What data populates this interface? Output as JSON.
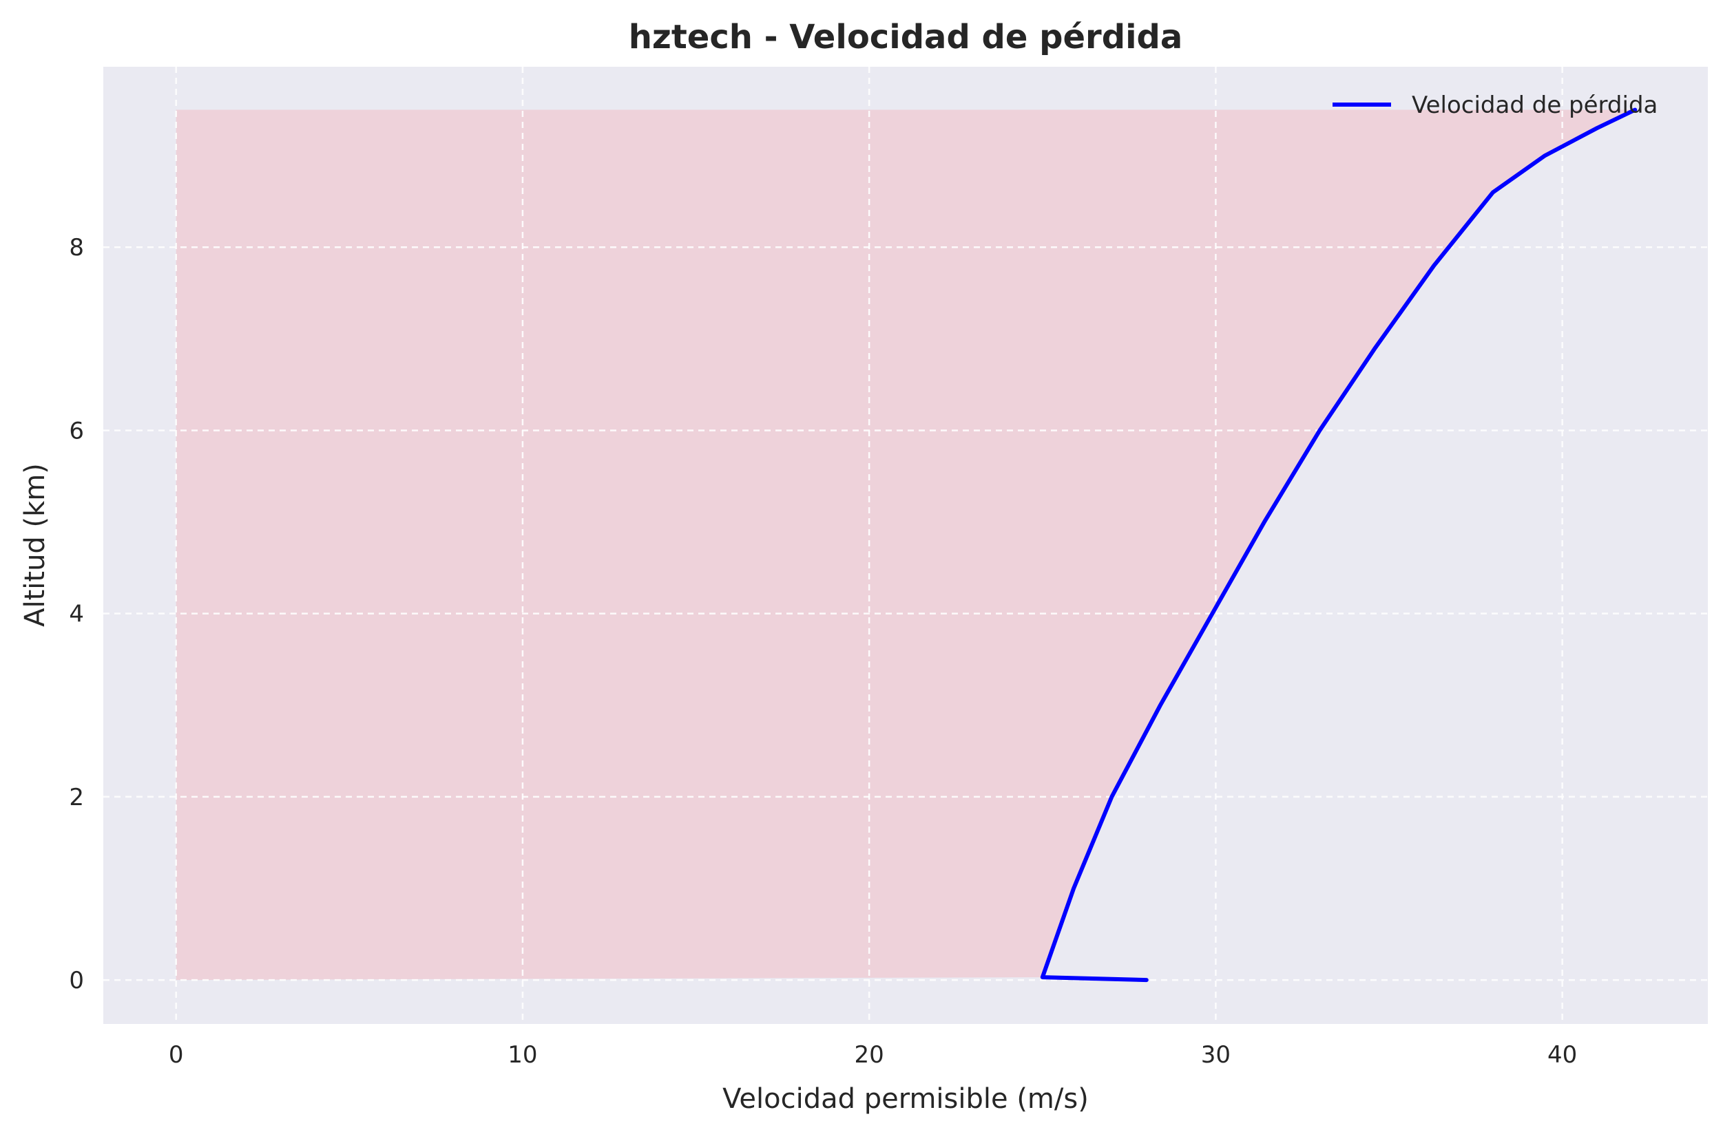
{
  "chart_data": {
    "type": "line",
    "title": "hztech - Velocidad de pérdida",
    "xlabel": "Velocidad permisible (m/s)",
    "ylabel": "Altitud (km)",
    "xlim": [
      -2.1,
      44.2
    ],
    "ylim": [
      -0.48,
      9.97
    ],
    "xticks": [
      0,
      10,
      20,
      30,
      40
    ],
    "yticks": [
      0,
      2,
      4,
      6,
      8
    ],
    "grid": true,
    "legend_position": "top-right",
    "series": [
      {
        "name": "Velocidad de pérdida",
        "color": "#0000ff",
        "x": [
          28.0,
          25.0,
          25.9,
          27.0,
          28.4,
          29.9,
          31.4,
          33.0,
          34.6,
          36.3,
          38.0,
          39.5,
          41.0,
          42.1
        ],
        "y": [
          0.0,
          0.03,
          1.0,
          2.0,
          3.0,
          4.0,
          5.0,
          6.0,
          6.9,
          7.8,
          8.6,
          9.0,
          9.3,
          9.5
        ]
      }
    ],
    "fill_region": {
      "color": "#f0c8d0",
      "x_start": 0,
      "y_bottom": 0,
      "y_top": 9.5
    },
    "colors": {
      "plot_background": "#eaeaf2",
      "grid": "#ffffff",
      "text": "#262626"
    }
  }
}
